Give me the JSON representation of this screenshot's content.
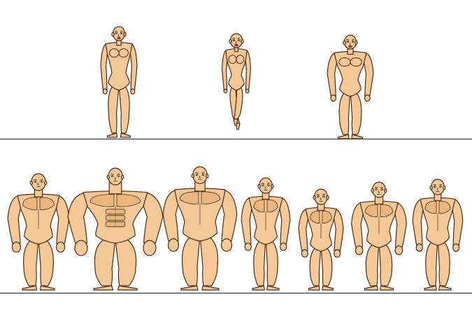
{
  "palette": {
    "skin": "#f5c896",
    "shade": "#e2a56c",
    "outline": "#4a2e18",
    "ground_line": "#222222",
    "background": "#ffffff",
    "lips": "#cc1f1f"
  },
  "rows": [
    {
      "name": "female",
      "figures": [
        {
          "id": "female-base",
          "gender": "female",
          "build": "slim",
          "pose": "standing"
        },
        {
          "id": "female-petite",
          "gender": "female",
          "build": "petite",
          "pose": "tiptoe"
        },
        {
          "id": "female-athletic",
          "gender": "female",
          "build": "athletic",
          "pose": "standing"
        }
      ]
    },
    {
      "name": "male",
      "figures": [
        {
          "id": "male-base",
          "gender": "male",
          "build": "average",
          "pose": "standing"
        },
        {
          "id": "male-huge",
          "gender": "male",
          "build": "huge",
          "pose": "standing"
        },
        {
          "id": "male-big",
          "gender": "male",
          "build": "big",
          "pose": "standing"
        },
        {
          "id": "male-lean",
          "gender": "male",
          "build": "lean",
          "pose": "standing"
        },
        {
          "id": "male-small",
          "gender": "male",
          "build": "small",
          "pose": "standing"
        },
        {
          "id": "male-athletic",
          "gender": "male",
          "build": "athletic",
          "pose": "standing"
        },
        {
          "id": "male-slim",
          "gender": "male",
          "build": "slim",
          "pose": "standing"
        }
      ]
    }
  ]
}
